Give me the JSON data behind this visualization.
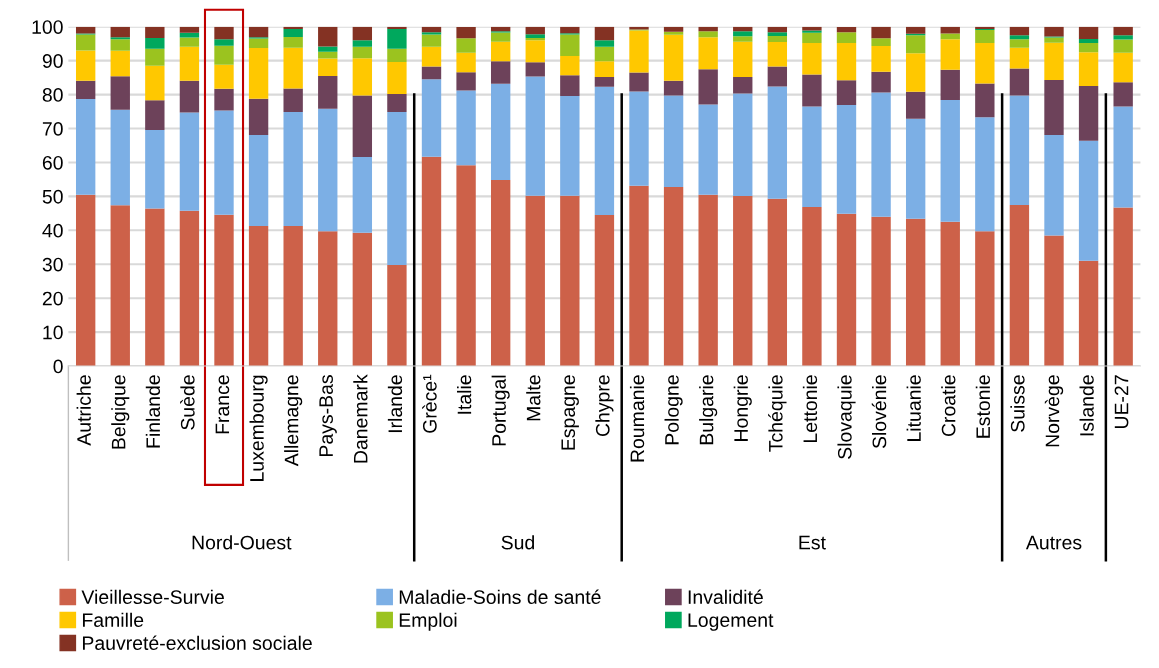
{
  "chart_data": {
    "type": "bar",
    "stacked": true,
    "categories": [
      "Autriche",
      "Belgique",
      "Finlande",
      "Suède",
      "France",
      "Luxembourg",
      "Allemagne",
      "Pays-Bas",
      "Danemark",
      "Irlande",
      "Grèce¹",
      "Italie",
      "Portugal",
      "Malte",
      "Espagne",
      "Chypre",
      "Roumanie",
      "Pologne",
      "Bulgarie",
      "Hongrie",
      "Tchéquie",
      "Lettonie",
      "Slovaquie",
      "Slovénie",
      "Lituanie",
      "Croatie",
      "Estonie",
      "Suisse",
      "Norvège",
      "Islande",
      "UE-27"
    ],
    "series": [
      {
        "name": "Vieillesse-Survie",
        "color": "#cd6149",
        "values": [
          50.5,
          47.4,
          46.4,
          45.8,
          44.6,
          41.3,
          41.3,
          39.7,
          39.3,
          29.8,
          61.7,
          59.2,
          54.8,
          50.2,
          50.2,
          44.5,
          53.1,
          52.8,
          50.5,
          50.1,
          49.3,
          46.9,
          44.9,
          44.0,
          43.4,
          42.5,
          39.7,
          47.5,
          38.5,
          31.0,
          46.7
        ]
      },
      {
        "name": "Maladie-Soins de santé",
        "color": "#7cafe5",
        "values": [
          28.2,
          28.1,
          23.2,
          28.9,
          30.7,
          26.8,
          33.6,
          36.1,
          22.3,
          45.1,
          22.8,
          22.0,
          28.4,
          35.1,
          29.4,
          37.8,
          27.8,
          26.9,
          26.6,
          30.2,
          33.1,
          29.6,
          32.0,
          36.6,
          29.5,
          35.9,
          33.6,
          32.2,
          29.6,
          35.4,
          29.8
        ]
      },
      {
        "name": "Invalidité",
        "color": "#6d425a",
        "values": [
          5.4,
          9.9,
          8.7,
          9.4,
          6.4,
          10.7,
          6.9,
          9.7,
          18.1,
          5.3,
          3.8,
          5.4,
          6.6,
          4.2,
          6.1,
          2.9,
          5.6,
          4.4,
          10.4,
          4.9,
          5.9,
          9.4,
          7.3,
          6.1,
          7.9,
          8.9,
          10.0,
          8.0,
          16.2,
          16.1,
          7.1
        ]
      },
      {
        "name": "Famille",
        "color": "#ffc800",
        "values": [
          8.9,
          7.5,
          10.2,
          10.0,
          7.1,
          14.9,
          12.0,
          5.1,
          11.0,
          9.4,
          5.8,
          5.7,
          5.8,
          6.5,
          5.7,
          4.6,
          12.4,
          13.5,
          9.4,
          10.4,
          7.2,
          9.3,
          11.0,
          7.6,
          11.4,
          9.0,
          11.9,
          6.1,
          11.0,
          10.0,
          8.7
        ]
      },
      {
        "name": "Emploi",
        "color": "#9bc31f",
        "values": [
          4.7,
          3.4,
          5.0,
          2.7,
          5.6,
          2.8,
          3.2,
          2.0,
          3.4,
          3.9,
          3.6,
          4.3,
          2.7,
          0.7,
          6.3,
          4.3,
          0.3,
          0.9,
          1.8,
          1.6,
          1.8,
          3.0,
          3.2,
          2.3,
          5.3,
          1.7,
          3.8,
          2.5,
          1.5,
          2.7,
          3.9
        ]
      },
      {
        "name": "Logement",
        "color": "#00a85d",
        "values": [
          0.3,
          0.6,
          3.2,
          1.4,
          1.9,
          0.4,
          2.3,
          1.6,
          1.9,
          5.8,
          0.7,
          null,
          0.4,
          1.1,
          0.4,
          1.9,
          0,
          0,
          0,
          1.5,
          1.1,
          0.7,
          null,
          0,
          0.4,
          0,
          0.3,
          1.2,
          0.3,
          1.2,
          1.3
        ]
      },
      {
        "name": "Pauvreté-exclusion sociale",
        "color": "#843223",
        "values": [
          2.0,
          3.1,
          3.3,
          1.8,
          3.7,
          3.1,
          0.7,
          5.8,
          4.0,
          0.7,
          1.6,
          3.3,
          1.3,
          2.2,
          1.9,
          4.0,
          0.8,
          1.5,
          1.3,
          1.3,
          1.6,
          1.1,
          1.5,
          3.4,
          2.1,
          2.0,
          0.7,
          2.5,
          2.9,
          3.6,
          2.5
        ]
      }
    ],
    "ylim": [
      0,
      100
    ],
    "yticks": [
      0,
      10,
      20,
      30,
      40,
      50,
      60,
      70,
      80,
      90,
      100
    ],
    "grid": "y",
    "legend": "bottom",
    "annotations": [
      "Nord-Ouest",
      "Sud",
      "Est",
      "Autres"
    ]
  }
}
